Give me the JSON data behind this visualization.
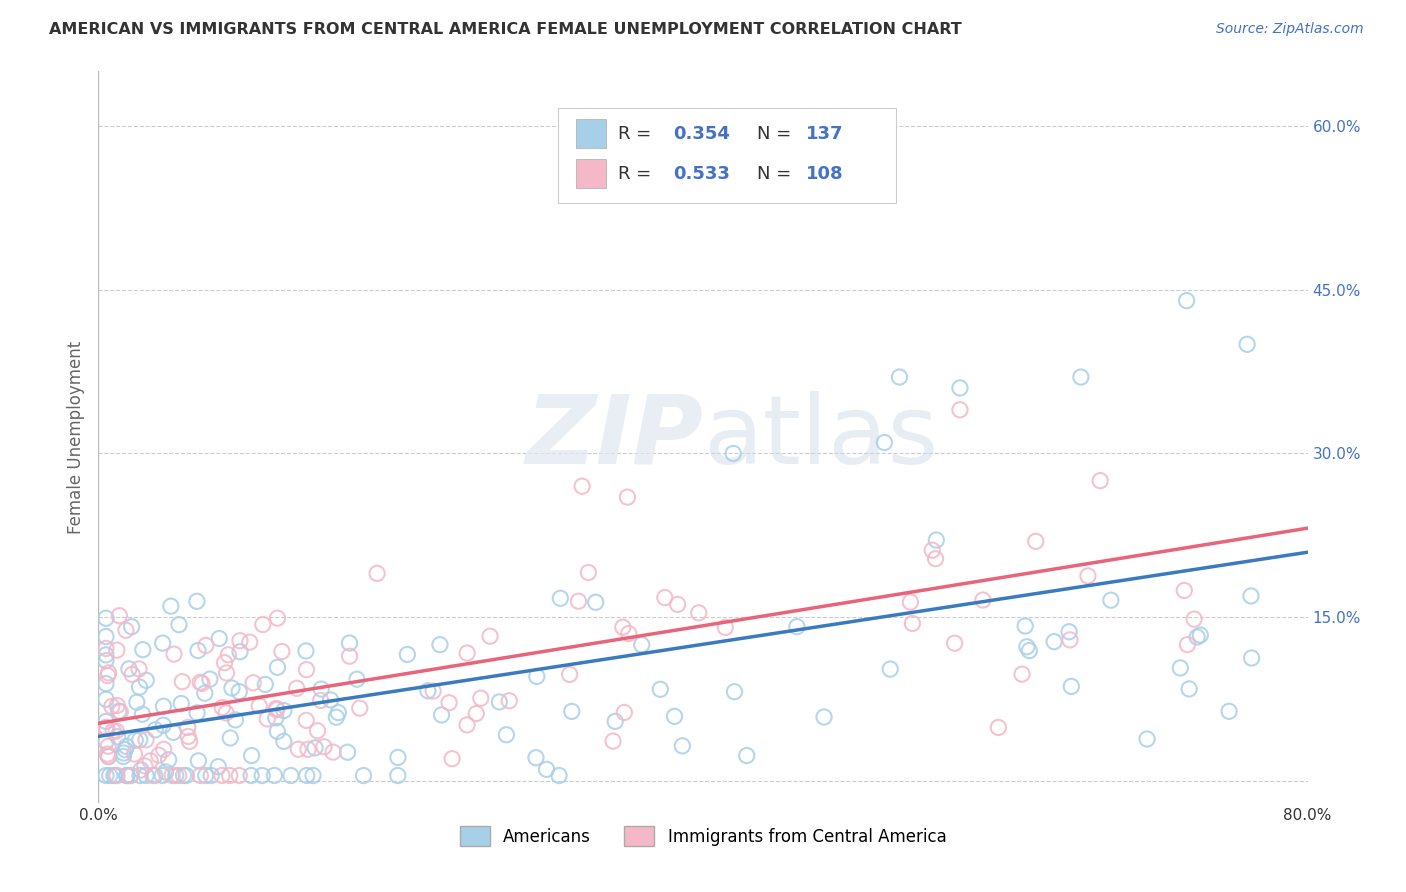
{
  "title": "AMERICAN VS IMMIGRANTS FROM CENTRAL AMERICA FEMALE UNEMPLOYMENT CORRELATION CHART",
  "source": "Source: ZipAtlas.com",
  "ylabel": "Female Unemployment",
  "xlim": [
    0.0,
    0.8
  ],
  "ylim": [
    -0.02,
    0.65
  ],
  "ytick_positions": [
    0.0,
    0.15,
    0.3,
    0.45,
    0.6
  ],
  "ytick_labels": [
    "",
    "15.0%",
    "30.0%",
    "45.0%",
    "60.0%"
  ],
  "watermark": "ZIPatlas",
  "blue_color": "#a8cfe8",
  "pink_color": "#f4b8c8",
  "blue_line_color": "#3a7abf",
  "pink_line_color": "#e8647a",
  "background_color": "#ffffff",
  "grid_color": "#cccccc",
  "blue_seed": 42,
  "pink_seed": 99,
  "n_blue": 137,
  "n_pink": 108
}
